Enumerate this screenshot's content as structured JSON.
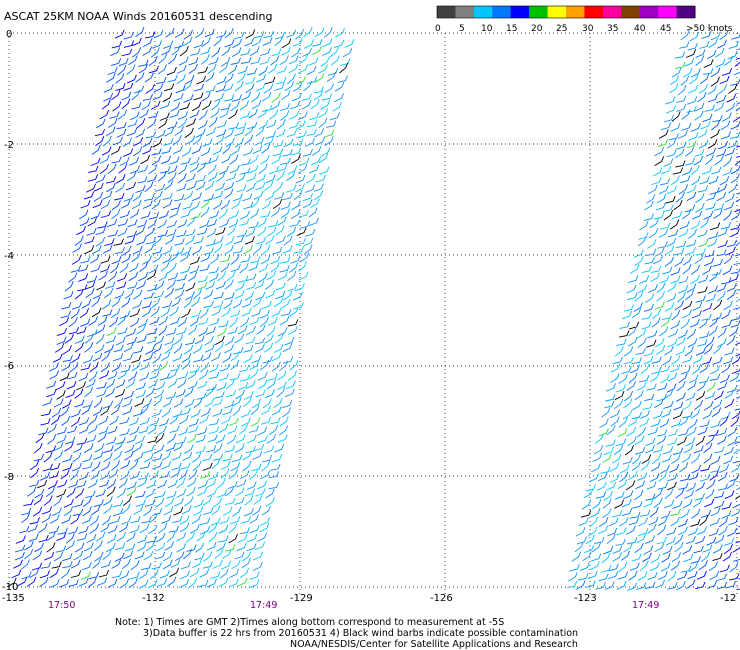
{
  "title": "ASCAT 25KM NOAA Winds 20160531  descending",
  "legend": {
    "ticks": [
      "0",
      "5",
      "10",
      "15",
      "20",
      "25",
      "30",
      "35",
      "40",
      "45",
      ">50 knots"
    ],
    "colors": [
      "#404040",
      "#7f7f7f",
      "#00c8ff",
      "#0078ff",
      "#0000ff",
      "#00c000",
      "#ffff00",
      "#ffa000",
      "#ff0000",
      "#ff00a0",
      "#804000",
      "#a000c0",
      "#ff00ff",
      "#500080"
    ]
  },
  "axes": {
    "lat_labels": [
      "0",
      "-2",
      "-4",
      "-6",
      "-8",
      "-10"
    ],
    "lon_labels": [
      "-135",
      "-132",
      "-129",
      "-126",
      "-123",
      "-12"
    ]
  },
  "swaths": {
    "time_left": "17:50",
    "time_mid": "17:49",
    "time_right": "17:49"
  },
  "notes": {
    "line1": "Note: 1) Times are GMT 2)Times along bottom correspond to measurement at -5S",
    "line2": "3)Data buffer is 22 hrs from 20160531 4) Black wind barbs indicate possible contamination",
    "line3": "NOAA/NESDIS/Center for Satellite Applications and Research"
  }
}
